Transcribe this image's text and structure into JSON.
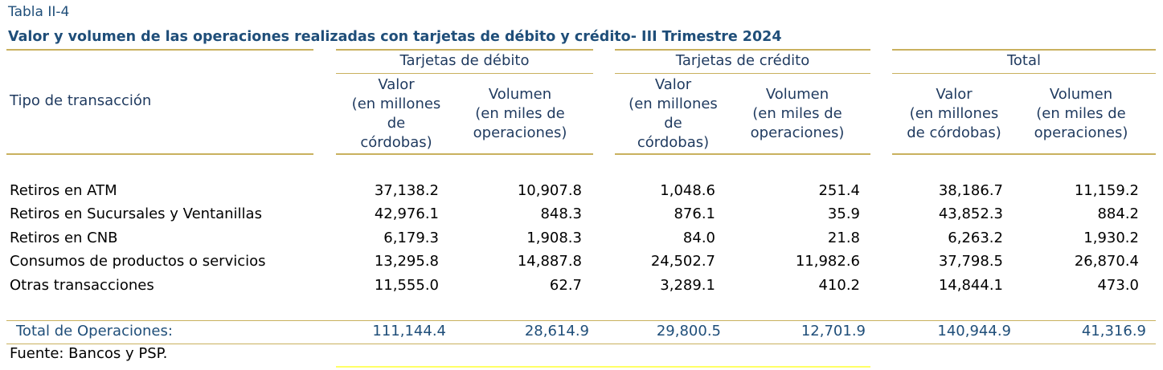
{
  "caption": "Tabla II-4",
  "title": "Valor y volumen de las operaciones realizadas con tarjetas de débito y crédito- III Trimestre 2024",
  "header": {
    "row_label": "Tipo de transacción",
    "groups": [
      "Tarjetas de débito",
      "Tarjetas de crédito",
      "Total"
    ],
    "debito": {
      "valor": [
        "Valor",
        "(en millones",
        "de",
        "córdobas)"
      ],
      "volumen": [
        "Volumen",
        "(en miles de",
        "operaciones)"
      ]
    },
    "credito": {
      "valor": [
        "Valor",
        "(en millones",
        "de",
        "córdobas)"
      ],
      "volumen": [
        "Volumen",
        "(en miles de",
        "operaciones)"
      ]
    },
    "total": {
      "valor": [
        "Valor",
        "(en millones",
        "de córdobas)"
      ],
      "volumen": [
        "Volumen",
        "(en miles de",
        "operaciones)"
      ]
    }
  },
  "rows": [
    {
      "label": "Retiros en ATM",
      "values": [
        "37,138.2",
        "10,907.8",
        "1,048.6",
        "251.4",
        "38,186.7",
        "11,159.2"
      ]
    },
    {
      "label": "Retiros en Sucursales y Ventanillas",
      "values": [
        "42,976.1",
        "848.3",
        "876.1",
        "35.9",
        "43,852.3",
        "884.2"
      ]
    },
    {
      "label": "Retiros en CNB",
      "values": [
        "6,179.3",
        "1,908.3",
        "84.0",
        "21.8",
        "6,263.2",
        "1,930.2"
      ]
    },
    {
      "label": "Consumos de productos o servicios",
      "values": [
        "13,295.8",
        "14,887.8",
        "24,502.7",
        "11,982.6",
        "37,798.5",
        "26,870.4"
      ]
    },
    {
      "label": "Otras transacciones",
      "values": [
        "11,555.0",
        "62.7",
        "3,289.1",
        "410.2",
        "14,844.1",
        "473.0"
      ]
    }
  ],
  "total": {
    "label": "Total de Operaciones:",
    "values": [
      "111,144.4",
      "28,614.9",
      "29,800.5",
      "12,701.9",
      "140,944.9",
      "41,316.9"
    ]
  },
  "source": "Fuente: Bancos y PSP."
}
